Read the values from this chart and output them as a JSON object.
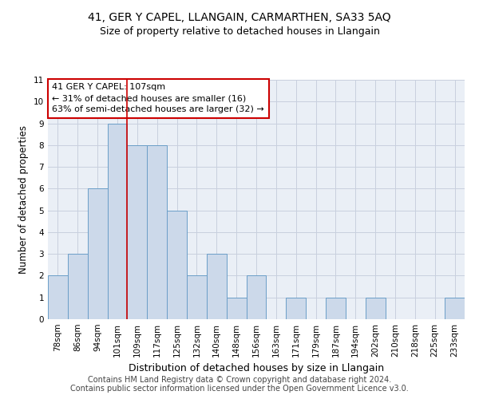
{
  "title1": "41, GER Y CAPEL, LLANGAIN, CARMARTHEN, SA33 5AQ",
  "title2": "Size of property relative to detached houses in Llangain",
  "xlabel": "Distribution of detached houses by size in Llangain",
  "ylabel": "Number of detached properties",
  "categories": [
    "78sqm",
    "86sqm",
    "94sqm",
    "101sqm",
    "109sqm",
    "117sqm",
    "125sqm",
    "132sqm",
    "140sqm",
    "148sqm",
    "156sqm",
    "163sqm",
    "171sqm",
    "179sqm",
    "187sqm",
    "194sqm",
    "202sqm",
    "210sqm",
    "218sqm",
    "225sqm",
    "233sqm"
  ],
  "values": [
    2,
    3,
    6,
    9,
    8,
    8,
    5,
    2,
    3,
    1,
    2,
    0,
    1,
    0,
    1,
    0,
    1,
    0,
    0,
    0,
    1
  ],
  "bar_color": "#ccd9ea",
  "bar_edge_color": "#6b9ec8",
  "grid_color": "#c8d0de",
  "bg_color": "#eaeff6",
  "vline_x": 3.5,
  "vline_color": "#cc0000",
  "annotation_text": "41 GER Y CAPEL: 107sqm\n← 31% of detached houses are smaller (16)\n63% of semi-detached houses are larger (32) →",
  "annotation_box_color": "#cc0000",
  "ylim": [
    0,
    11
  ],
  "yticks": [
    0,
    1,
    2,
    3,
    4,
    5,
    6,
    7,
    8,
    9,
    10,
    11
  ],
  "footer1": "Contains HM Land Registry data © Crown copyright and database right 2024.",
  "footer2": "Contains public sector information licensed under the Open Government Licence v3.0.",
  "title1_fontsize": 10,
  "title2_fontsize": 9,
  "xlabel_fontsize": 9,
  "ylabel_fontsize": 8.5,
  "tick_fontsize": 7.5,
  "annotation_fontsize": 8,
  "footer_fontsize": 7
}
